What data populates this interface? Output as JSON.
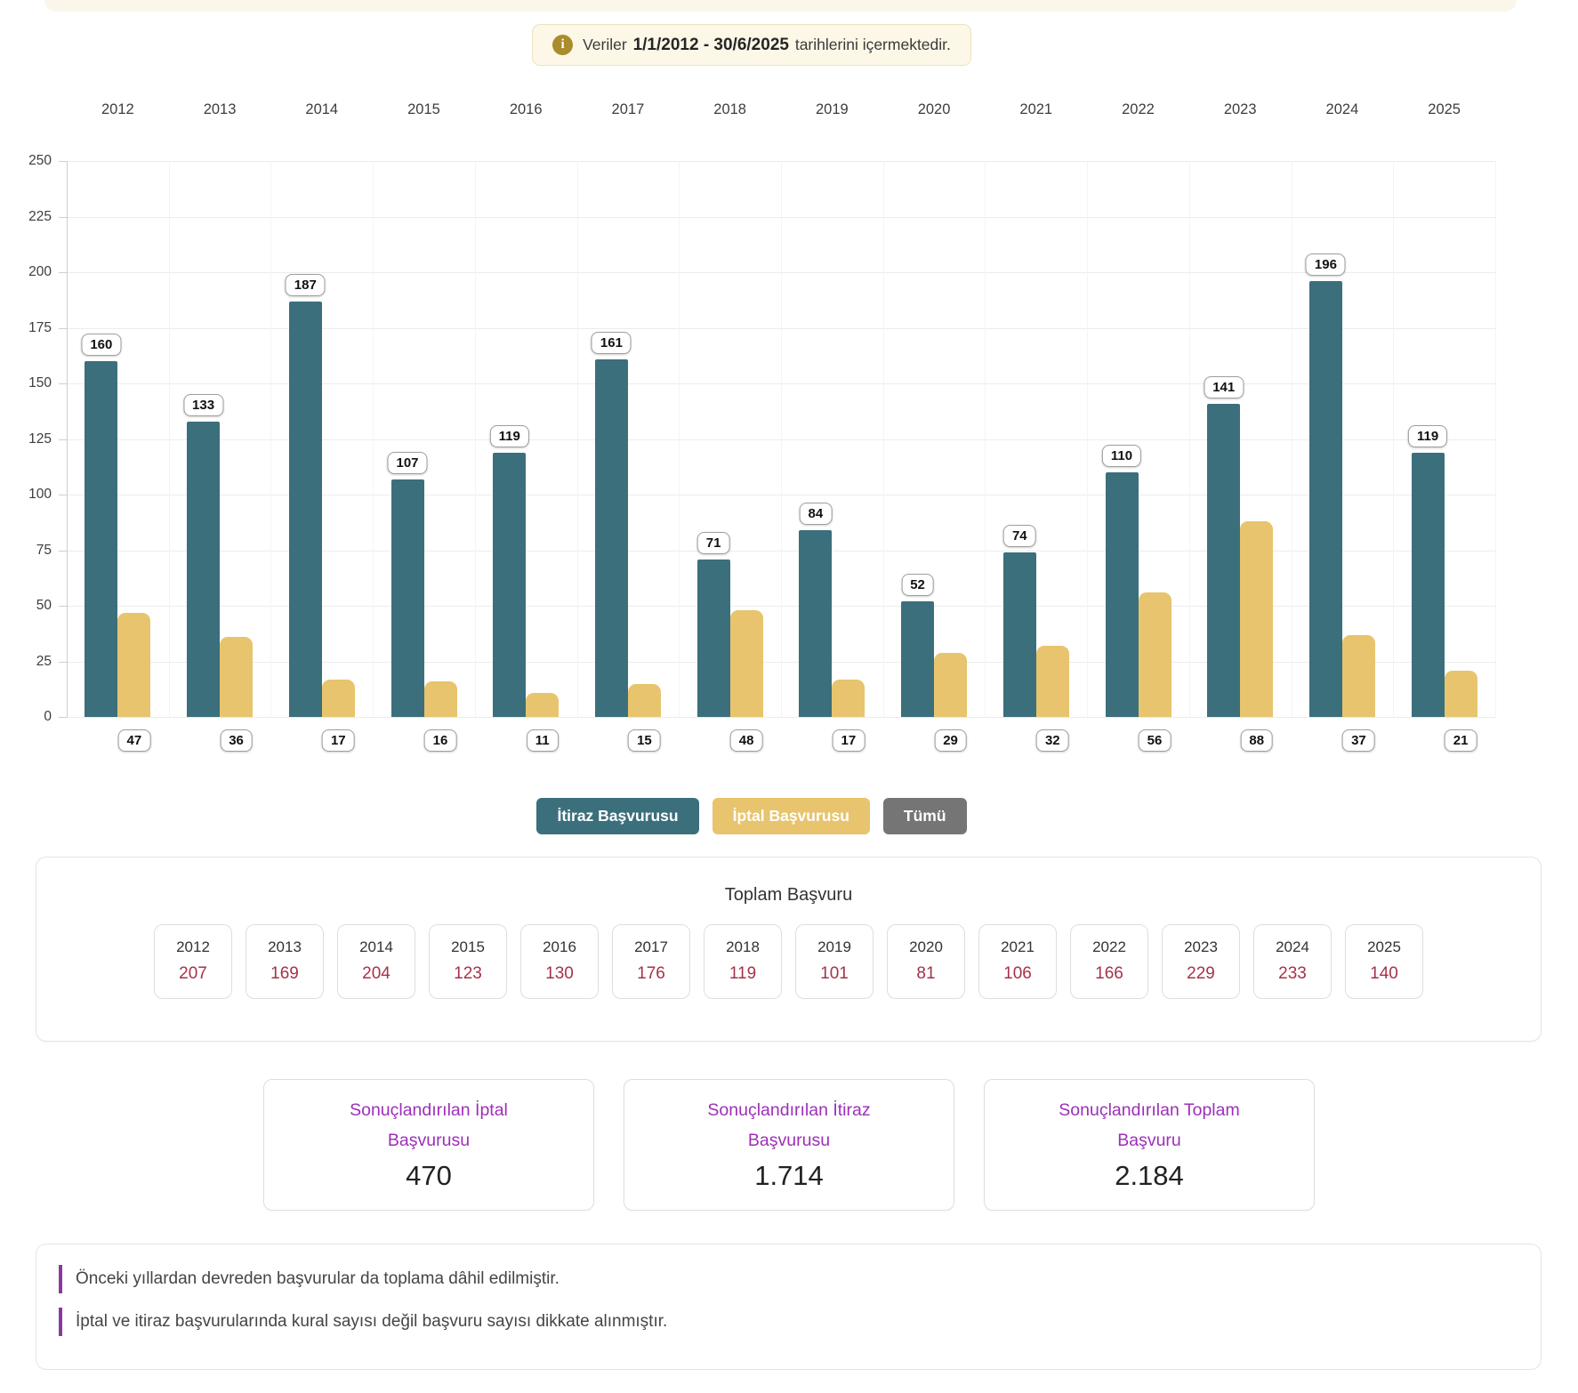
{
  "banner": {
    "icon": "i",
    "text_prefix": "Veriler",
    "date_range": "1/1/2012 - 30/6/2025",
    "text_suffix": "tarihlerini içermektedir."
  },
  "chart_data": {
    "type": "bar",
    "categories": [
      "2012",
      "2013",
      "2014",
      "2015",
      "2016",
      "2017",
      "2018",
      "2019",
      "2020",
      "2021",
      "2022",
      "2023",
      "2024",
      "2025"
    ],
    "series": [
      {
        "name": "İtiraz Başvurusu",
        "color": "#3b6f7c",
        "values": [
          160,
          133,
          187,
          107,
          119,
          161,
          71,
          84,
          52,
          74,
          110,
          141,
          196,
          119
        ]
      },
      {
        "name": "İptal Başvurusu",
        "color": "#e7c46d",
        "values": [
          47,
          36,
          17,
          16,
          11,
          15,
          48,
          17,
          29,
          32,
          56,
          88,
          37,
          21
        ]
      }
    ],
    "title": "",
    "xlabel": "",
    "ylabel": "",
    "ylim": [
      0,
      250
    ],
    "ytick_step": 25,
    "grid": true,
    "value_labels": true,
    "x_axis_position": "top",
    "legend_position": "bottom"
  },
  "legend_buttons": [
    {
      "label": "İtiraz Başvurusu",
      "color": "#3b6f7c"
    },
    {
      "label": "İptal Başvurusu",
      "color": "#e7c46d"
    },
    {
      "label": "Tümü",
      "color": "#757575"
    }
  ],
  "totals": {
    "title": "Toplam Başvuru",
    "items": [
      {
        "year": "2012",
        "value": "207"
      },
      {
        "year": "2013",
        "value": "169"
      },
      {
        "year": "2014",
        "value": "204"
      },
      {
        "year": "2015",
        "value": "123"
      },
      {
        "year": "2016",
        "value": "130"
      },
      {
        "year": "2017",
        "value": "176"
      },
      {
        "year": "2018",
        "value": "119"
      },
      {
        "year": "2019",
        "value": "101"
      },
      {
        "year": "2020",
        "value": "81"
      },
      {
        "year": "2021",
        "value": "106"
      },
      {
        "year": "2022",
        "value": "166"
      },
      {
        "year": "2023",
        "value": "229"
      },
      {
        "year": "2024",
        "value": "233"
      },
      {
        "year": "2025",
        "value": "140"
      }
    ]
  },
  "summary_cards": [
    {
      "title": "Sonuçlandırılan İptal Başvurusu",
      "value": "470"
    },
    {
      "title": "Sonuçlandırılan İtiraz Başvurusu",
      "value": "1.714"
    },
    {
      "title": "Sonuçlandırılan Toplam Başvuru",
      "value": "2.184"
    }
  ],
  "notes": [
    "Önceki yıllardan devreden başvurular da toplama dâhil edilmiştir.",
    "İptal ve itiraz başvurularında kural sayısı değil başvuru sayısı dikkate alınmıştır."
  ],
  "colors": {
    "itiraz": "#3b6f7c",
    "iptal": "#e7c46d",
    "tumu_button": "#757575",
    "totals_value": "#a43349",
    "summary_title": "#9d2fb8",
    "note_bar": "#8a3a9c",
    "banner_bg": "#fcf7e7",
    "banner_icon": "#aa8c2c"
  }
}
